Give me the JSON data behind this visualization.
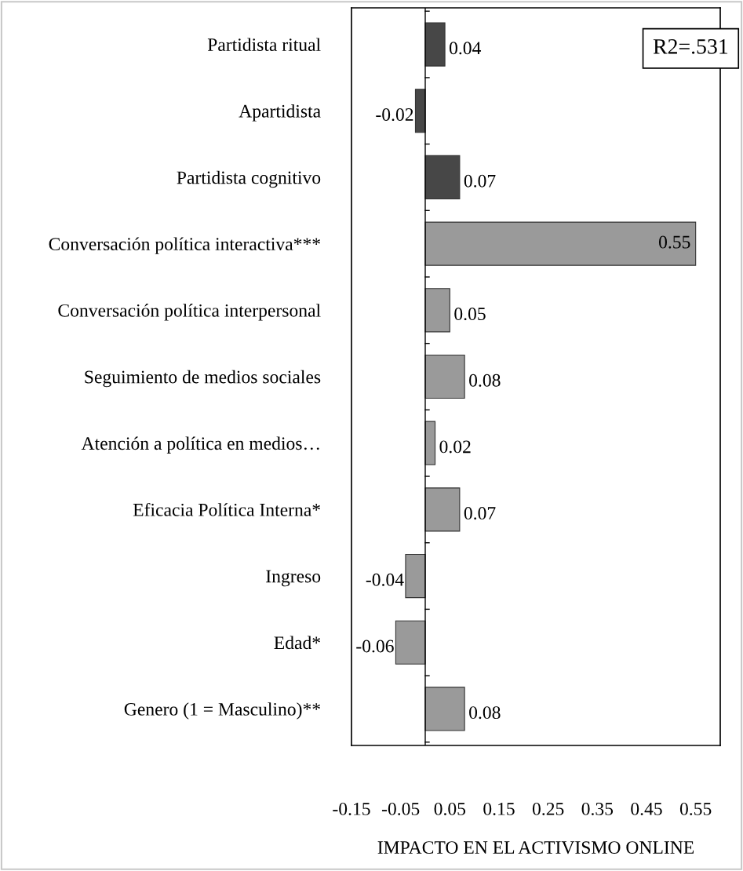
{
  "chart_data": {
    "type": "bar",
    "orientation": "horizontal",
    "categories": [
      "Partidista ritual",
      "Apartidista",
      "Partidista cognitivo",
      "Conversación política interactiva***",
      "Conversación política interpersonal",
      "Seguimiento de medios sociales",
      "Atención a política en medios…",
      "Eficacia Política Interna*",
      "Ingreso",
      "Edad*",
      "Genero (1 = Masculino)**"
    ],
    "values": [
      0.04,
      -0.02,
      0.07,
      0.55,
      0.05,
      0.08,
      0.02,
      0.07,
      -0.04,
      -0.06,
      0.08
    ],
    "colors": [
      "#474747",
      "#474747",
      "#474747",
      "#9a9a9a",
      "#9a9a9a",
      "#9a9a9a",
      "#9a9a9a",
      "#9a9a9a",
      "#9a9a9a",
      "#9a9a9a",
      "#9a9a9a"
    ],
    "xlabel": "IMPACTO EN EL ACTIVISMO ONLINE",
    "xlim": [
      -0.15,
      0.6
    ],
    "xticks": [
      -0.15,
      -0.05,
      0.05,
      0.15,
      0.25,
      0.35,
      0.45,
      0.55
    ],
    "data_labels": true,
    "grid": false,
    "legend": false,
    "annotations": [
      "R2=.531"
    ]
  }
}
